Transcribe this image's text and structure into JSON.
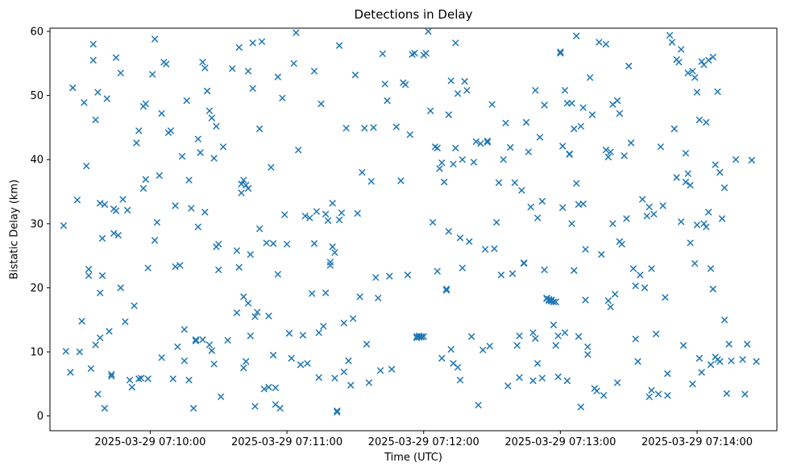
{
  "figure": {
    "title": "Detections in Delay",
    "xlabel": "Time (UTC)",
    "ylabel": "Bistatic Delay (km)"
  },
  "chart_data": {
    "type": "scatter",
    "title": "Detections in Delay",
    "xlabel": "Time (UTC)",
    "ylabel": "Bistatic Delay (km)",
    "marker": "x",
    "marker_color": "#1f77b4",
    "legend": "none",
    "grid": false,
    "x_base_time": "2025-03-29 07:09:00",
    "x_range_seconds": [
      16,
      335
    ],
    "ylim": [
      -2.3,
      60.5
    ],
    "y_ticks": [
      0,
      10,
      20,
      30,
      40,
      50,
      60
    ],
    "x_ticks": [
      {
        "seconds": 60,
        "label": "2025-03-29 07:10:00"
      },
      {
        "seconds": 120,
        "label": "2025-03-29 07:11:00"
      },
      {
        "seconds": 180,
        "label": "2025-03-29 07:12:00"
      },
      {
        "seconds": 240,
        "label": "2025-03-29 07:13:00"
      },
      {
        "seconds": 300,
        "label": "2025-03-29 07:14:00"
      }
    ],
    "points": [
      [
        22,
        29.7
      ],
      [
        23,
        10.1
      ],
      [
        25,
        6.8
      ],
      [
        26,
        51.2
      ],
      [
        28,
        33.7
      ],
      [
        29,
        10.0
      ],
      [
        30,
        14.8
      ],
      [
        31,
        48.9
      ],
      [
        32,
        39.0
      ],
      [
        33,
        22.9
      ],
      [
        33,
        21.9
      ],
      [
        34,
        7.4
      ],
      [
        35,
        58.0
      ],
      [
        35,
        55.5
      ],
      [
        36,
        46.2
      ],
      [
        36,
        11.1
      ],
      [
        37,
        3.4
      ],
      [
        37,
        50.5
      ],
      [
        38,
        33.2
      ],
      [
        38,
        19.2
      ],
      [
        38,
        12.2
      ],
      [
        39,
        27.7
      ],
      [
        39,
        21.9
      ],
      [
        40,
        33.0
      ],
      [
        40,
        1.2
      ],
      [
        41,
        49.5
      ],
      [
        42,
        13.2
      ],
      [
        43,
        6.5
      ],
      [
        43,
        6.2
      ],
      [
        44,
        32.3
      ],
      [
        44,
        28.5
      ],
      [
        45,
        55.9
      ],
      [
        45,
        32.0
      ],
      [
        46,
        28.2
      ],
      [
        47,
        53.5
      ],
      [
        47,
        20.0
      ],
      [
        48,
        33.8
      ],
      [
        49,
        14.7
      ],
      [
        50,
        32.1
      ],
      [
        51,
        5.6
      ],
      [
        52,
        4.5
      ],
      [
        53,
        17.2
      ],
      [
        54,
        42.6
      ],
      [
        55,
        44.5
      ],
      [
        55,
        5.8
      ],
      [
        56,
        5.9
      ],
      [
        57,
        48.3
      ],
      [
        57,
        35.5
      ],
      [
        58,
        48.7
      ],
      [
        58,
        36.9
      ],
      [
        59,
        23.1
      ],
      [
        59,
        5.8
      ],
      [
        61,
        53.3
      ],
      [
        62,
        58.8
      ],
      [
        62,
        27.4
      ],
      [
        63,
        30.2
      ],
      [
        64,
        37.5
      ],
      [
        65,
        47.2
      ],
      [
        65,
        9.1
      ],
      [
        66,
        55.2
      ],
      [
        67,
        54.9
      ],
      [
        68,
        44.2
      ],
      [
        69,
        44.5
      ],
      [
        70,
        5.8
      ],
      [
        71,
        32.8
      ],
      [
        71,
        23.3
      ],
      [
        72,
        10.8
      ],
      [
        73,
        23.5
      ],
      [
        74,
        40.5
      ],
      [
        75,
        13.5
      ],
      [
        75,
        8.6
      ],
      [
        76,
        49.2
      ],
      [
        77,
        36.8
      ],
      [
        77,
        5.6
      ],
      [
        78,
        32.4
      ],
      [
        79,
        1.2
      ],
      [
        80,
        11.9
      ],
      [
        80,
        11.7
      ],
      [
        81,
        29.5
      ],
      [
        81,
        43.2
      ],
      [
        82,
        41.1
      ],
      [
        83,
        55.2
      ],
      [
        83,
        11.9
      ],
      [
        84,
        54.3
      ],
      [
        84,
        31.8
      ],
      [
        85,
        50.7
      ],
      [
        86,
        47.6
      ],
      [
        86,
        11.1
      ],
      [
        87,
        46.5
      ],
      [
        87,
        10.2
      ],
      [
        88,
        40.2
      ],
      [
        88,
        8.1
      ],
      [
        89,
        45.2
      ],
      [
        89,
        26.4
      ],
      [
        90,
        26.8
      ],
      [
        90,
        22.8
      ],
      [
        91,
        3.0
      ],
      [
        92,
        42.0
      ],
      [
        94,
        11.8
      ],
      [
        96,
        54.2
      ],
      [
        98,
        25.8
      ],
      [
        98,
        16.1
      ],
      [
        99,
        57.5
      ],
      [
        99,
        23.2
      ],
      [
        100,
        34.8
      ],
      [
        100,
        36.2
      ],
      [
        101,
        36.8
      ],
      [
        101,
        18.6
      ],
      [
        101,
        7.5
      ],
      [
        102,
        36.0
      ],
      [
        102,
        8.5
      ],
      [
        103,
        53.8
      ],
      [
        103,
        35.5
      ],
      [
        103,
        17.6
      ],
      [
        104,
        25.2
      ],
      [
        104,
        12.5
      ],
      [
        105,
        58.2
      ],
      [
        105,
        51.1
      ],
      [
        106,
        15.5
      ],
      [
        106,
        1.5
      ],
      [
        107,
        16.2
      ],
      [
        108,
        44.8
      ],
      [
        108,
        29.2
      ],
      [
        109,
        58.4
      ],
      [
        110,
        4.2
      ],
      [
        111,
        27.0
      ],
      [
        112,
        15.6
      ],
      [
        112,
        4.5
      ],
      [
        113,
        38.8
      ],
      [
        114,
        26.9
      ],
      [
        114,
        9.5
      ],
      [
        115,
        4.4
      ],
      [
        115,
        1.8
      ],
      [
        116,
        52.9
      ],
      [
        116,
        22.1
      ],
      [
        117,
        1.2
      ],
      [
        118,
        49.6
      ],
      [
        119,
        31.4
      ],
      [
        120,
        26.8
      ],
      [
        121,
        12.9
      ],
      [
        122,
        9.0
      ],
      [
        123,
        55.0
      ],
      [
        124,
        59.8
      ],
      [
        125,
        41.5
      ],
      [
        126,
        8.0
      ],
      [
        127,
        12.6
      ],
      [
        128,
        31.2
      ],
      [
        129,
        8.2
      ],
      [
        130,
        30.9
      ],
      [
        131,
        19.1
      ],
      [
        132,
        53.8
      ],
      [
        132,
        26.9
      ],
      [
        133,
        31.9
      ],
      [
        134,
        13.0
      ],
      [
        134,
        6.0
      ],
      [
        135,
        48.7
      ],
      [
        136,
        14.0
      ],
      [
        137,
        31.5
      ],
      [
        137,
        19.2
      ],
      [
        138,
        30.5
      ],
      [
        139,
        24.0
      ],
      [
        139,
        23.5
      ],
      [
        140,
        33.2
      ],
      [
        140,
        26.4
      ],
      [
        141,
        25.5
      ],
      [
        141,
        5.9
      ],
      [
        142,
        0.8
      ],
      [
        142,
        0.6
      ],
      [
        143,
        57.8
      ],
      [
        143,
        30.6
      ],
      [
        144,
        31.7
      ],
      [
        145,
        14.5
      ],
      [
        145,
        6.9
      ],
      [
        146,
        44.9
      ],
      [
        147,
        8.6
      ],
      [
        148,
        4.8
      ],
      [
        149,
        15.2
      ],
      [
        150,
        53.2
      ],
      [
        151,
        31.6
      ],
      [
        152,
        18.6
      ],
      [
        153,
        38.0
      ],
      [
        154,
        44.9
      ],
      [
        155,
        11.2
      ],
      [
        156,
        5.2
      ],
      [
        157,
        36.6
      ],
      [
        158,
        45.0
      ],
      [
        159,
        21.6
      ],
      [
        160,
        18.4
      ],
      [
        161,
        7.1
      ],
      [
        162,
        56.5
      ],
      [
        163,
        51.8
      ],
      [
        164,
        49.2
      ],
      [
        165,
        21.8
      ],
      [
        166,
        7.3
      ],
      [
        168,
        45.1
      ],
      [
        170,
        36.7
      ],
      [
        171,
        52.0
      ],
      [
        172,
        51.7
      ],
      [
        173,
        22.0
      ],
      [
        174,
        43.9
      ],
      [
        175,
        56.4
      ],
      [
        176,
        56.6
      ],
      [
        177,
        12.2
      ],
      [
        177,
        12.4
      ],
      [
        178,
        12.3
      ],
      [
        178,
        12.5
      ],
      [
        179,
        12.4
      ],
      [
        179,
        12.3
      ],
      [
        180,
        12.4
      ],
      [
        180,
        56.3
      ],
      [
        181,
        56.6
      ],
      [
        182,
        60.0
      ],
      [
        183,
        47.6
      ],
      [
        184,
        30.2
      ],
      [
        185,
        42.0
      ],
      [
        186,
        41.8
      ],
      [
        186,
        22.6
      ],
      [
        187,
        38.6
      ],
      [
        188,
        39.5
      ],
      [
        188,
        9.0
      ],
      [
        189,
        36.5
      ],
      [
        190,
        19.6
      ],
      [
        190,
        19.8
      ],
      [
        191,
        47.0
      ],
      [
        191,
        28.8
      ],
      [
        192,
        52.3
      ],
      [
        192,
        10.4
      ],
      [
        193,
        39.3
      ],
      [
        193,
        8.2
      ],
      [
        194,
        58.2
      ],
      [
        194,
        41.8
      ],
      [
        195,
        50.3
      ],
      [
        195,
        7.6
      ],
      [
        196,
        27.8
      ],
      [
        196,
        5.6
      ],
      [
        197,
        40.0
      ],
      [
        197,
        23.1
      ],
      [
        198,
        52.2
      ],
      [
        199,
        50.8
      ],
      [
        200,
        27.2
      ],
      [
        201,
        12.4
      ],
      [
        202,
        39.6
      ],
      [
        203,
        42.8
      ],
      [
        204,
        1.7
      ],
      [
        205,
        42.5
      ],
      [
        206,
        10.3
      ],
      [
        207,
        26.0
      ],
      [
        208,
        42.7
      ],
      [
        208,
        42.9
      ],
      [
        209,
        10.9
      ],
      [
        210,
        48.6
      ],
      [
        211,
        26.1
      ],
      [
        212,
        30.2
      ],
      [
        213,
        36.4
      ],
      [
        214,
        22.0
      ],
      [
        215,
        40.0
      ],
      [
        216,
        45.7
      ],
      [
        217,
        4.7
      ],
      [
        218,
        41.9
      ],
      [
        219,
        22.2
      ],
      [
        220,
        36.4
      ],
      [
        221,
        11.0
      ],
      [
        222,
        12.5
      ],
      [
        222,
        6.0
      ],
      [
        223,
        35.2
      ],
      [
        224,
        23.8
      ],
      [
        224,
        23.9
      ],
      [
        225,
        45.8
      ],
      [
        226,
        41.2
      ],
      [
        227,
        32.6
      ],
      [
        228,
        13.0
      ],
      [
        228,
        5.5
      ],
      [
        229,
        50.8
      ],
      [
        229,
        12.1
      ],
      [
        230,
        30.9
      ],
      [
        230,
        8.2
      ],
      [
        231,
        43.5
      ],
      [
        232,
        33.5
      ],
      [
        232,
        5.9
      ],
      [
        233,
        48.5
      ],
      [
        233,
        22.8
      ],
      [
        234,
        18.3
      ],
      [
        234,
        18.4
      ],
      [
        235,
        18.2
      ],
      [
        235,
        18.0
      ],
      [
        236,
        17.9
      ],
      [
        236,
        18.1
      ],
      [
        237,
        17.8
      ],
      [
        237,
        14.2
      ],
      [
        238,
        17.8
      ],
      [
        238,
        11.0
      ],
      [
        239,
        12.5
      ],
      [
        239,
        6.1
      ],
      [
        240,
        56.8
      ],
      [
        240,
        56.6
      ],
      [
        241,
        42.1
      ],
      [
        241,
        32.5
      ],
      [
        242,
        50.8
      ],
      [
        242,
        13.0
      ],
      [
        243,
        48.8
      ],
      [
        243,
        5.5
      ],
      [
        244,
        40.8
      ],
      [
        244,
        40.9
      ],
      [
        245,
        48.8
      ],
      [
        245,
        30.0
      ],
      [
        246,
        44.8
      ],
      [
        246,
        22.7
      ],
      [
        247,
        59.3
      ],
      [
        247,
        36.3
      ],
      [
        248,
        33.0
      ],
      [
        248,
        12.4
      ],
      [
        249,
        45.2
      ],
      [
        249,
        1.4
      ],
      [
        250,
        48.1
      ],
      [
        250,
        33.1
      ],
      [
        251,
        26.0
      ],
      [
        251,
        18.1
      ],
      [
        252,
        10.8
      ],
      [
        252,
        9.6
      ],
      [
        253,
        52.8
      ],
      [
        254,
        47.0
      ],
      [
        255,
        4.3
      ],
      [
        256,
        3.9
      ],
      [
        257,
        58.3
      ],
      [
        258,
        25.2
      ],
      [
        259,
        3.2
      ],
      [
        260,
        58.0
      ],
      [
        260,
        41.5
      ],
      [
        261,
        40.4
      ],
      [
        261,
        18.0
      ],
      [
        262,
        41.2
      ],
      [
        262,
        17.0
      ],
      [
        263,
        48.6
      ],
      [
        263,
        30.0
      ],
      [
        264,
        19.0
      ],
      [
        265,
        49.2
      ],
      [
        265,
        5.2
      ],
      [
        266,
        47.2
      ],
      [
        266,
        27.2
      ],
      [
        267,
        26.8
      ],
      [
        268,
        40.6
      ],
      [
        269,
        30.8
      ],
      [
        270,
        54.6
      ],
      [
        271,
        42.6
      ],
      [
        272,
        23.0
      ],
      [
        273,
        20.3
      ],
      [
        273,
        12.0
      ],
      [
        274,
        8.5
      ],
      [
        275,
        22.0
      ],
      [
        276,
        33.8
      ],
      [
        277,
        20.0
      ],
      [
        278,
        31.2
      ],
      [
        279,
        32.6
      ],
      [
        279,
        3.0
      ],
      [
        280,
        23.0
      ],
      [
        280,
        4.0
      ],
      [
        281,
        31.5
      ],
      [
        282,
        12.8
      ],
      [
        283,
        3.4
      ],
      [
        284,
        42.0
      ],
      [
        285,
        32.8
      ],
      [
        286,
        18.5
      ],
      [
        287,
        6.6
      ],
      [
        287,
        3.2
      ],
      [
        288,
        59.4
      ],
      [
        289,
        58.3
      ],
      [
        290,
        44.8
      ],
      [
        291,
        55.6
      ],
      [
        291,
        37.2
      ],
      [
        292,
        55.2
      ],
      [
        293,
        57.2
      ],
      [
        293,
        30.3
      ],
      [
        294,
        11.0
      ],
      [
        295,
        41.0
      ],
      [
        295,
        36.5
      ],
      [
        296,
        53.5
      ],
      [
        296,
        37.8
      ],
      [
        297,
        36.0
      ],
      [
        297,
        27.0
      ],
      [
        298,
        53.8
      ],
      [
        298,
        5.0
      ],
      [
        299,
        52.8
      ],
      [
        299,
        23.8
      ],
      [
        300,
        50.5
      ],
      [
        300,
        29.8
      ],
      [
        301,
        46.2
      ],
      [
        301,
        9.0
      ],
      [
        302,
        55.3
      ],
      [
        302,
        6.8
      ],
      [
        303,
        54.8
      ],
      [
        303,
        30.0
      ],
      [
        304,
        45.8
      ],
      [
        304,
        29.5
      ],
      [
        305,
        55.5
      ],
      [
        305,
        31.8
      ],
      [
        306,
        23.0
      ],
      [
        306,
        8.0
      ],
      [
        307,
        56.0
      ],
      [
        307,
        19.8
      ],
      [
        308,
        39.2
      ],
      [
        308,
        9.2
      ],
      [
        309,
        50.6
      ],
      [
        309,
        8.8
      ],
      [
        310,
        38.0
      ],
      [
        310,
        8.5
      ],
      [
        311,
        30.8
      ],
      [
        312,
        35.6
      ],
      [
        312,
        15.0
      ],
      [
        313,
        3.5
      ],
      [
        314,
        11.2
      ],
      [
        315,
        8.6
      ],
      [
        317,
        40.0
      ],
      [
        320,
        8.8
      ],
      [
        321,
        3.4
      ],
      [
        322,
        11.2
      ],
      [
        324,
        39.9
      ],
      [
        326,
        8.5
      ]
    ]
  }
}
